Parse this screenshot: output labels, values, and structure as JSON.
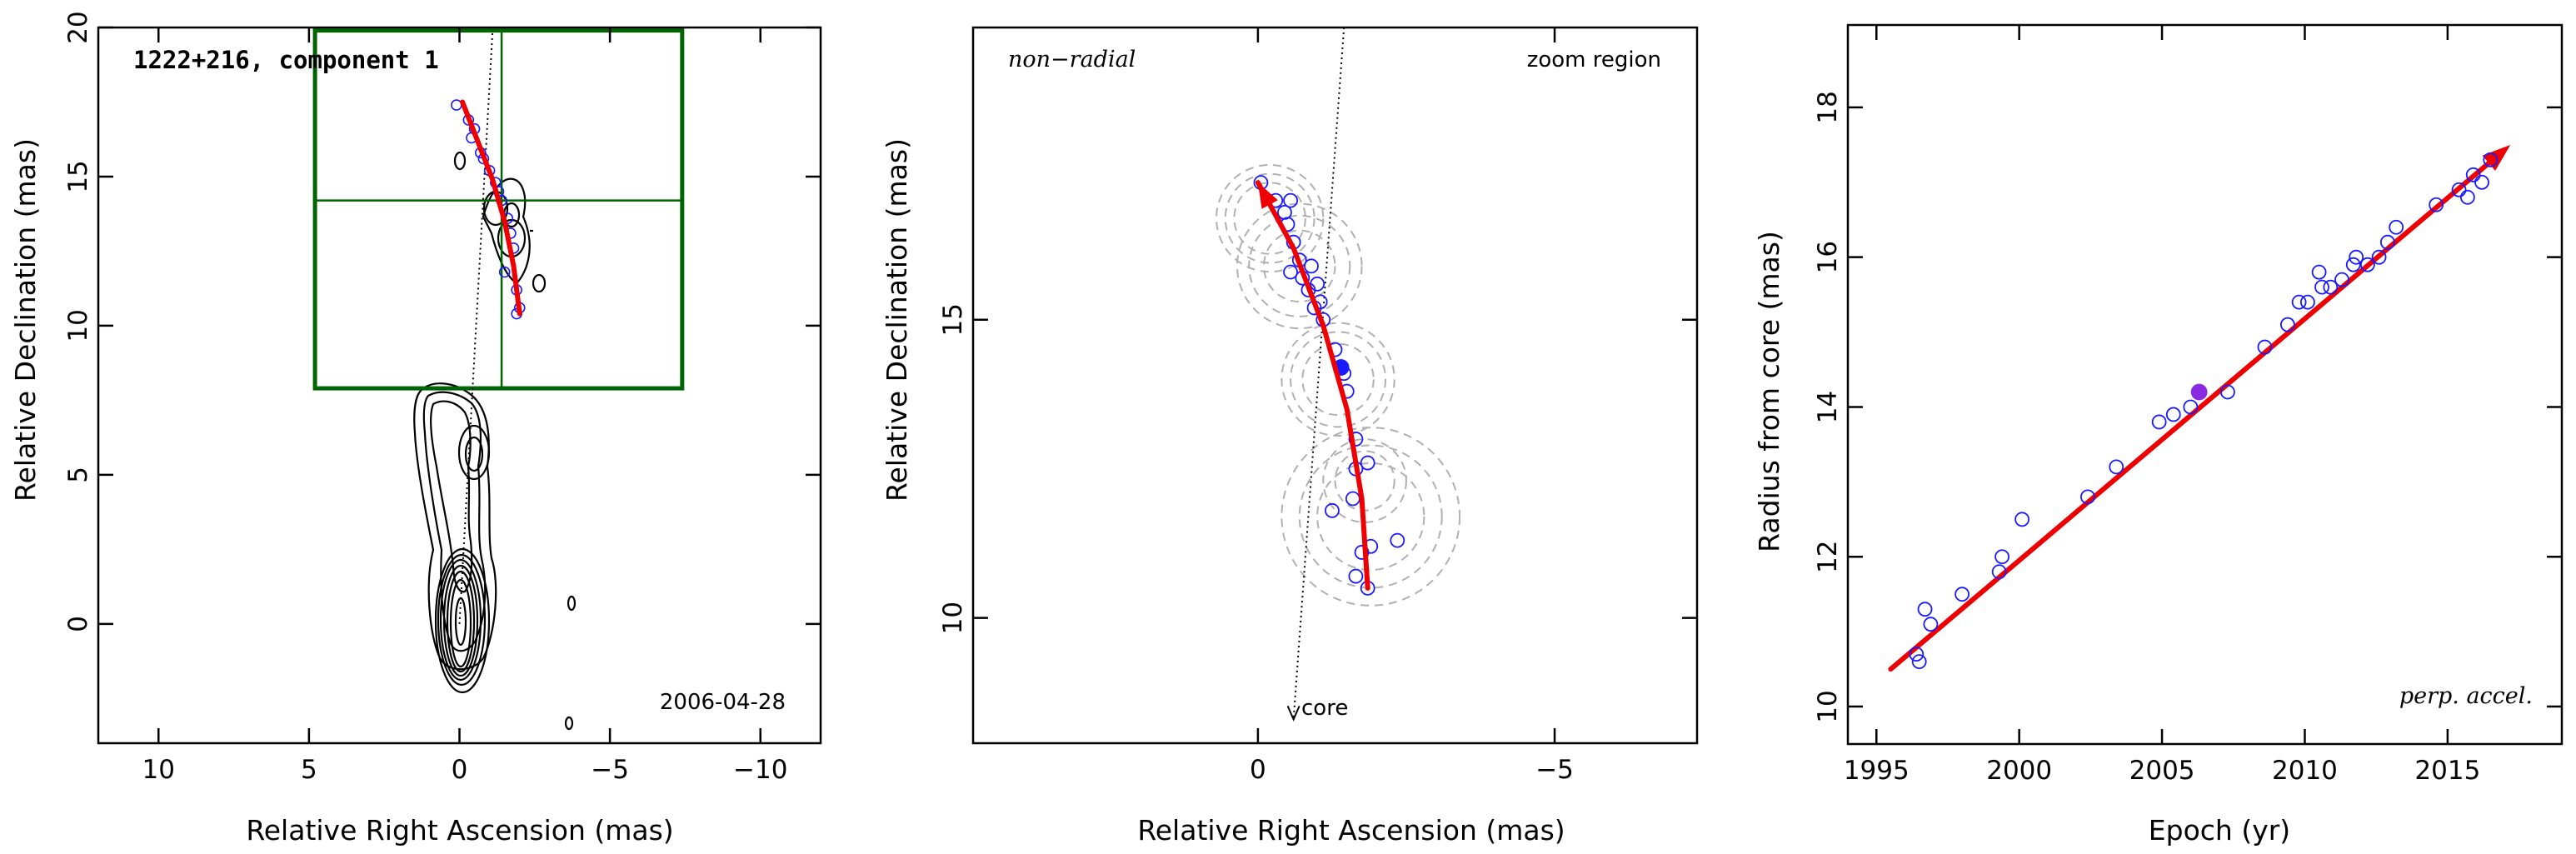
{
  "colors": {
    "axis": "#000000",
    "contour": "#000000",
    "fit_line": "#ee0000",
    "points": "#1a1aff",
    "highlight_point": "#8a2be2",
    "box": "#006400",
    "ghost_circles": "#b0b0b0",
    "path": "#000000"
  },
  "chart_data": [
    {
      "type": "scatter",
      "panel": "map",
      "title": "1222+216, component 1",
      "date_label": "2006-04-28",
      "xlabel": "Relative Right Ascension (mas)",
      "ylabel": "Relative Declination (mas)",
      "xlim": [
        12,
        -12
      ],
      "ylim": [
        -4,
        20
      ],
      "xticks": [
        10,
        5,
        0,
        -5,
        -10
      ],
      "yticks": [
        0,
        5,
        10,
        15,
        20
      ],
      "xtick_labels": [
        "10",
        "5",
        "0",
        "−5",
        "−10"
      ],
      "ytick_labels": [
        "0",
        "5",
        "10",
        "15",
        "20"
      ],
      "zoom_box": {
        "x": [
          4.8,
          -7.4
        ],
        "y": [
          7.9,
          19.9
        ]
      },
      "crosshair": {
        "x": -1.4,
        "y": 14.2
      },
      "core_line": {
        "from": [
          0.0,
          0.0
        ],
        "to": [
          -1.1,
          19.9
        ]
      },
      "component_points": [
        [
          0.1,
          17.4
        ],
        [
          -0.3,
          16.9
        ],
        [
          -0.5,
          16.6
        ],
        [
          -0.4,
          16.3
        ],
        [
          -0.7,
          15.8
        ],
        [
          -0.8,
          15.6
        ],
        [
          -1.0,
          15.2
        ],
        [
          -1.2,
          14.8
        ],
        [
          -1.3,
          14.5
        ],
        [
          -1.4,
          14.2
        ],
        [
          -1.6,
          13.6
        ],
        [
          -1.7,
          13.1
        ],
        [
          -1.8,
          12.6
        ],
        [
          -1.5,
          11.8
        ],
        [
          -1.9,
          11.2
        ],
        [
          -2.0,
          10.6
        ],
        [
          -1.9,
          10.4
        ]
      ],
      "fit_curve": [
        [
          -0.1,
          17.5
        ],
        [
          -0.6,
          16.2
        ],
        [
          -1.1,
          14.9
        ],
        [
          -1.5,
          13.5
        ],
        [
          -1.8,
          12.0
        ],
        [
          -2.0,
          10.4
        ]
      ]
    },
    {
      "type": "scatter",
      "panel": "zoom",
      "left_label": "non−radial",
      "right_label": "zoom region",
      "core_label": "core",
      "xlabel": "Relative Right Ascension (mas)",
      "ylabel": "Relative Declination (mas)",
      "xlim": [
        4.8,
        -7.4
      ],
      "ylim": [
        7.9,
        19.9
      ],
      "xticks": [
        0,
        -5
      ],
      "yticks": [
        10,
        15
      ],
      "xtick_labels": [
        "0",
        "−5"
      ],
      "ytick_labels": [
        "10",
        "15"
      ],
      "core_line": {
        "from": [
          -1.45,
          19.9
        ],
        "to": [
          -0.6,
          8.3
        ]
      },
      "points": [
        [
          -0.05,
          17.3
        ],
        [
          -0.3,
          17.0
        ],
        [
          -0.45,
          16.8
        ],
        [
          -0.55,
          17.0
        ],
        [
          -0.5,
          16.6
        ],
        [
          -0.6,
          16.3
        ],
        [
          -0.7,
          16.0
        ],
        [
          -0.55,
          15.8
        ],
        [
          -0.9,
          15.9
        ],
        [
          -0.75,
          15.7
        ],
        [
          -0.85,
          15.5
        ],
        [
          -1.0,
          15.6
        ],
        [
          -1.05,
          15.3
        ],
        [
          -0.95,
          15.2
        ],
        [
          -1.1,
          15.0
        ],
        [
          -1.3,
          14.5
        ],
        [
          -1.45,
          14.1
        ],
        [
          -1.5,
          13.8
        ],
        [
          -1.65,
          13.0
        ],
        [
          -1.65,
          12.5
        ],
        [
          -1.85,
          12.6
        ],
        [
          -1.6,
          12.0
        ],
        [
          -1.25,
          11.8
        ],
        [
          -1.75,
          11.1
        ],
        [
          -1.9,
          11.2
        ],
        [
          -2.35,
          11.3
        ],
        [
          -1.65,
          10.7
        ],
        [
          -1.85,
          10.5
        ]
      ],
      "highlight": [
        -1.4,
        14.2
      ],
      "fit_curve": [
        [
          0.0,
          17.3
        ],
        [
          -0.6,
          16.2
        ],
        [
          -1.1,
          14.9
        ],
        [
          -1.5,
          13.5
        ],
        [
          -1.75,
          12.0
        ],
        [
          -1.85,
          10.5
        ]
      ],
      "ghost_circles": [
        {
          "center": [
            -0.2,
            16.7
          ],
          "r": [
            0.6,
            0.75,
            0.9
          ]
        },
        {
          "center": [
            -0.7,
            15.9
          ],
          "r": [
            0.6,
            0.85,
            1.05
          ]
        },
        {
          "center": [
            -1.35,
            14.0
          ],
          "r": [
            0.6,
            0.8,
            0.95
          ]
        },
        {
          "center": [
            -1.8,
            12.3
          ],
          "r": [
            0.5,
            0.7
          ]
        },
        {
          "center": [
            -1.9,
            11.7
          ],
          "r": [
            0.9,
            1.2,
            1.5
          ]
        }
      ]
    },
    {
      "type": "scatter",
      "panel": "radius",
      "label": "perp. accel.",
      "xlabel": "Epoch (yr)",
      "ylabel": "Radius from core (mas)",
      "xlim": [
        1994,
        2019
      ],
      "ylim": [
        9.5,
        19.1
      ],
      "xticks": [
        1995,
        2000,
        2005,
        2010,
        2015
      ],
      "yticks": [
        10,
        12,
        14,
        16,
        18
      ],
      "xtick_labels": [
        "1995",
        "2000",
        "2005",
        "2010",
        "2015"
      ],
      "ytick_labels": [
        "10",
        "12",
        "14",
        "16",
        "18"
      ],
      "points": [
        [
          1996.4,
          10.7
        ],
        [
          1996.5,
          10.6
        ],
        [
          1996.7,
          11.3
        ],
        [
          1996.9,
          11.1
        ],
        [
          1998.0,
          11.5
        ],
        [
          1999.3,
          11.8
        ],
        [
          1999.4,
          12.0
        ],
        [
          2000.1,
          12.5
        ],
        [
          2002.4,
          12.8
        ],
        [
          2003.4,
          13.2
        ],
        [
          2004.9,
          13.8
        ],
        [
          2005.4,
          13.9
        ],
        [
          2006.0,
          14.0
        ],
        [
          2007.3,
          14.2
        ],
        [
          2008.6,
          14.8
        ],
        [
          2009.4,
          15.1
        ],
        [
          2009.8,
          15.4
        ],
        [
          2010.1,
          15.4
        ],
        [
          2010.5,
          15.8
        ],
        [
          2010.6,
          15.6
        ],
        [
          2010.9,
          15.6
        ],
        [
          2011.3,
          15.7
        ],
        [
          2011.7,
          15.9
        ],
        [
          2011.8,
          16.0
        ],
        [
          2012.2,
          15.9
        ],
        [
          2012.6,
          16.0
        ],
        [
          2012.9,
          16.2
        ],
        [
          2013.2,
          16.4
        ],
        [
          2014.6,
          16.7
        ],
        [
          2015.4,
          16.9
        ],
        [
          2015.7,
          16.8
        ],
        [
          2015.9,
          17.1
        ],
        [
          2016.2,
          17.0
        ],
        [
          2016.5,
          17.3
        ]
      ],
      "highlight": [
        2006.3,
        14.2
      ],
      "fit_line": [
        [
          1995.5,
          10.5
        ],
        [
          2017.2,
          17.5
        ]
      ]
    }
  ]
}
